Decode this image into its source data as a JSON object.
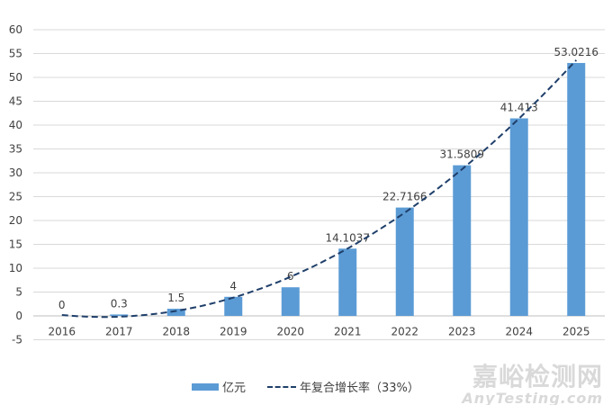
{
  "chart_data": {
    "type": "bar",
    "categories": [
      "2016",
      "2017",
      "2018",
      "2019",
      "2020",
      "2021",
      "2022",
      "2023",
      "2024",
      "2025"
    ],
    "series": [
      {
        "name": "亿元",
        "type": "bar",
        "color": "#5b9bd5",
        "values": [
          0,
          0.3,
          1.5,
          4,
          6,
          14.1037,
          22.7166,
          31.5809,
          41.413,
          53.0216
        ],
        "labels": [
          "0",
          "0.3",
          "1.5",
          "4",
          "6",
          "14.1037",
          "22.7166",
          "31.5809",
          "41.413",
          "53.0216"
        ]
      },
      {
        "name": "年复合增长率（33%）",
        "type": "trendline-dashed",
        "color": "#1f3f6a"
      }
    ],
    "ylim": [
      -5,
      60
    ],
    "yticks": [
      "60",
      "55",
      "50",
      "45",
      "40",
      "35",
      "30",
      "25",
      "20",
      "15",
      "10",
      "5",
      "0",
      "-5"
    ],
    "grid": true,
    "legend": "bottom"
  },
  "watermark": {
    "line1": "嘉峪检测网",
    "line2": "AnyTesting.com"
  }
}
